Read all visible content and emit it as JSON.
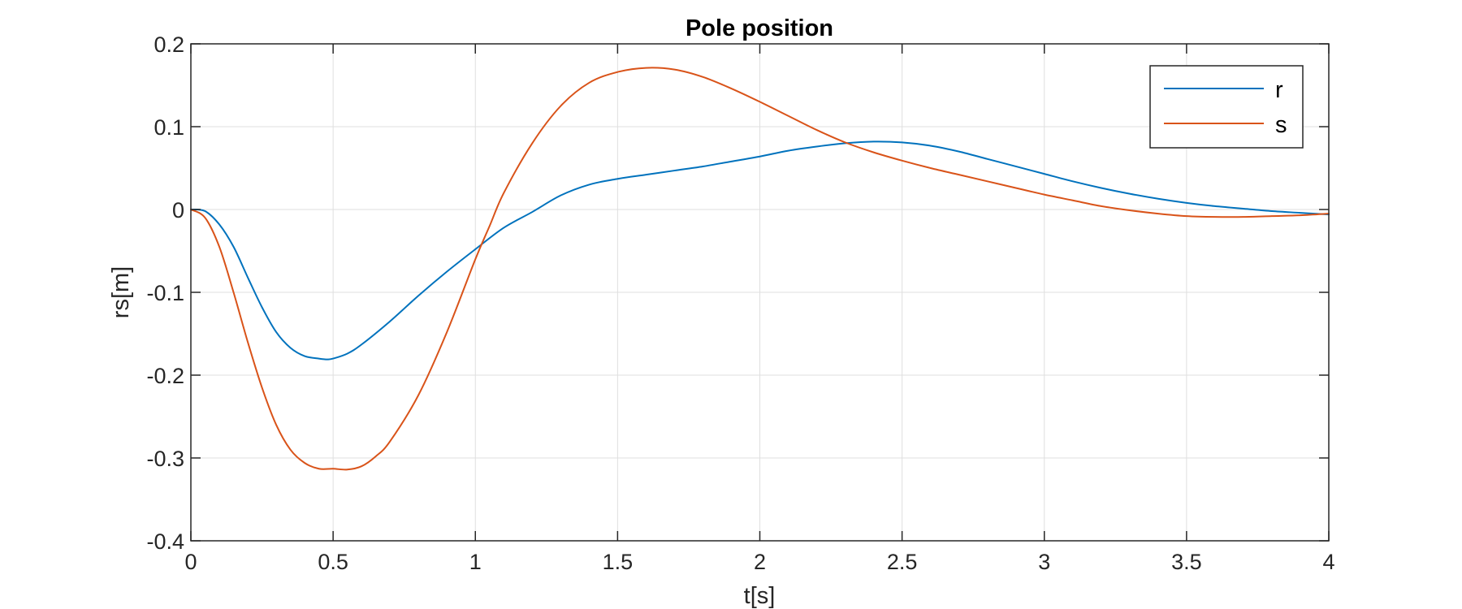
{
  "chart_data": {
    "type": "line",
    "title": "Pole position",
    "xlabel": "t[s]",
    "ylabel": "rs[m]",
    "xlim": [
      0,
      4
    ],
    "ylim": [
      -0.4,
      0.2
    ],
    "x_ticks": [
      0,
      0.5,
      1,
      1.5,
      2,
      2.5,
      3,
      3.5,
      4
    ],
    "x_tick_labels": [
      "0",
      "0.5",
      "1",
      "1.5",
      "2",
      "2.5",
      "3",
      "3.5",
      "4"
    ],
    "y_ticks": [
      -0.4,
      -0.3,
      -0.2,
      -0.1,
      0,
      0.1,
      0.2
    ],
    "y_tick_labels": [
      "-0.4",
      "-0.3",
      "-0.2",
      "-0.1",
      "0",
      "0.1",
      "0.2"
    ],
    "grid": true,
    "legend_position": "top-right",
    "series": [
      {
        "name": "r",
        "color": "#0072bd",
        "x": [
          0,
          0.05,
          0.1,
          0.15,
          0.2,
          0.25,
          0.3,
          0.35,
          0.4,
          0.45,
          0.48,
          0.5,
          0.55,
          0.6,
          0.7,
          0.8,
          0.9,
          1.0,
          1.1,
          1.2,
          1.3,
          1.4,
          1.5,
          1.6,
          1.7,
          1.8,
          1.9,
          2.0,
          2.1,
          2.2,
          2.3,
          2.4,
          2.5,
          2.6,
          2.7,
          2.8,
          2.9,
          3.0,
          3.1,
          3.2,
          3.3,
          3.4,
          3.5,
          3.6,
          3.7,
          3.8,
          3.9,
          4.0
        ],
        "y": [
          0,
          -0.002,
          -0.018,
          -0.045,
          -0.082,
          -0.118,
          -0.148,
          -0.167,
          -0.177,
          -0.18,
          -0.181,
          -0.18,
          -0.174,
          -0.163,
          -0.135,
          -0.104,
          -0.075,
          -0.048,
          -0.022,
          -0.003,
          0.017,
          0.03,
          0.037,
          0.042,
          0.047,
          0.052,
          0.058,
          0.064,
          0.071,
          0.076,
          0.08,
          0.082,
          0.081,
          0.077,
          0.07,
          0.061,
          0.052,
          0.043,
          0.034,
          0.026,
          0.019,
          0.013,
          0.008,
          0.004,
          0.001,
          -0.002,
          -0.004,
          -0.006
        ]
      },
      {
        "name": "s",
        "color": "#d95319",
        "x": [
          0,
          0.05,
          0.1,
          0.15,
          0.2,
          0.25,
          0.3,
          0.35,
          0.4,
          0.45,
          0.5,
          0.55,
          0.6,
          0.65,
          0.7,
          0.8,
          0.9,
          1.0,
          1.05,
          1.1,
          1.2,
          1.3,
          1.4,
          1.5,
          1.6,
          1.7,
          1.8,
          1.9,
          2.0,
          2.1,
          2.2,
          2.3,
          2.4,
          2.5,
          2.6,
          2.7,
          2.8,
          2.9,
          3.0,
          3.1,
          3.2,
          3.3,
          3.4,
          3.5,
          3.6,
          3.7,
          3.8,
          3.9,
          4.0
        ],
        "y": [
          0,
          -0.01,
          -0.045,
          -0.1,
          -0.16,
          -0.215,
          -0.26,
          -0.29,
          -0.306,
          -0.313,
          -0.313,
          -0.314,
          -0.31,
          -0.298,
          -0.28,
          -0.224,
          -0.148,
          -0.06,
          -0.02,
          0.02,
          0.08,
          0.125,
          0.153,
          0.166,
          0.171,
          0.169,
          0.16,
          0.146,
          0.13,
          0.113,
          0.096,
          0.081,
          0.069,
          0.059,
          0.05,
          0.042,
          0.034,
          0.026,
          0.018,
          0.011,
          0.004,
          -0.001,
          -0.005,
          -0.008,
          -0.009,
          -0.009,
          -0.008,
          -0.007,
          -0.005
        ]
      }
    ]
  }
}
